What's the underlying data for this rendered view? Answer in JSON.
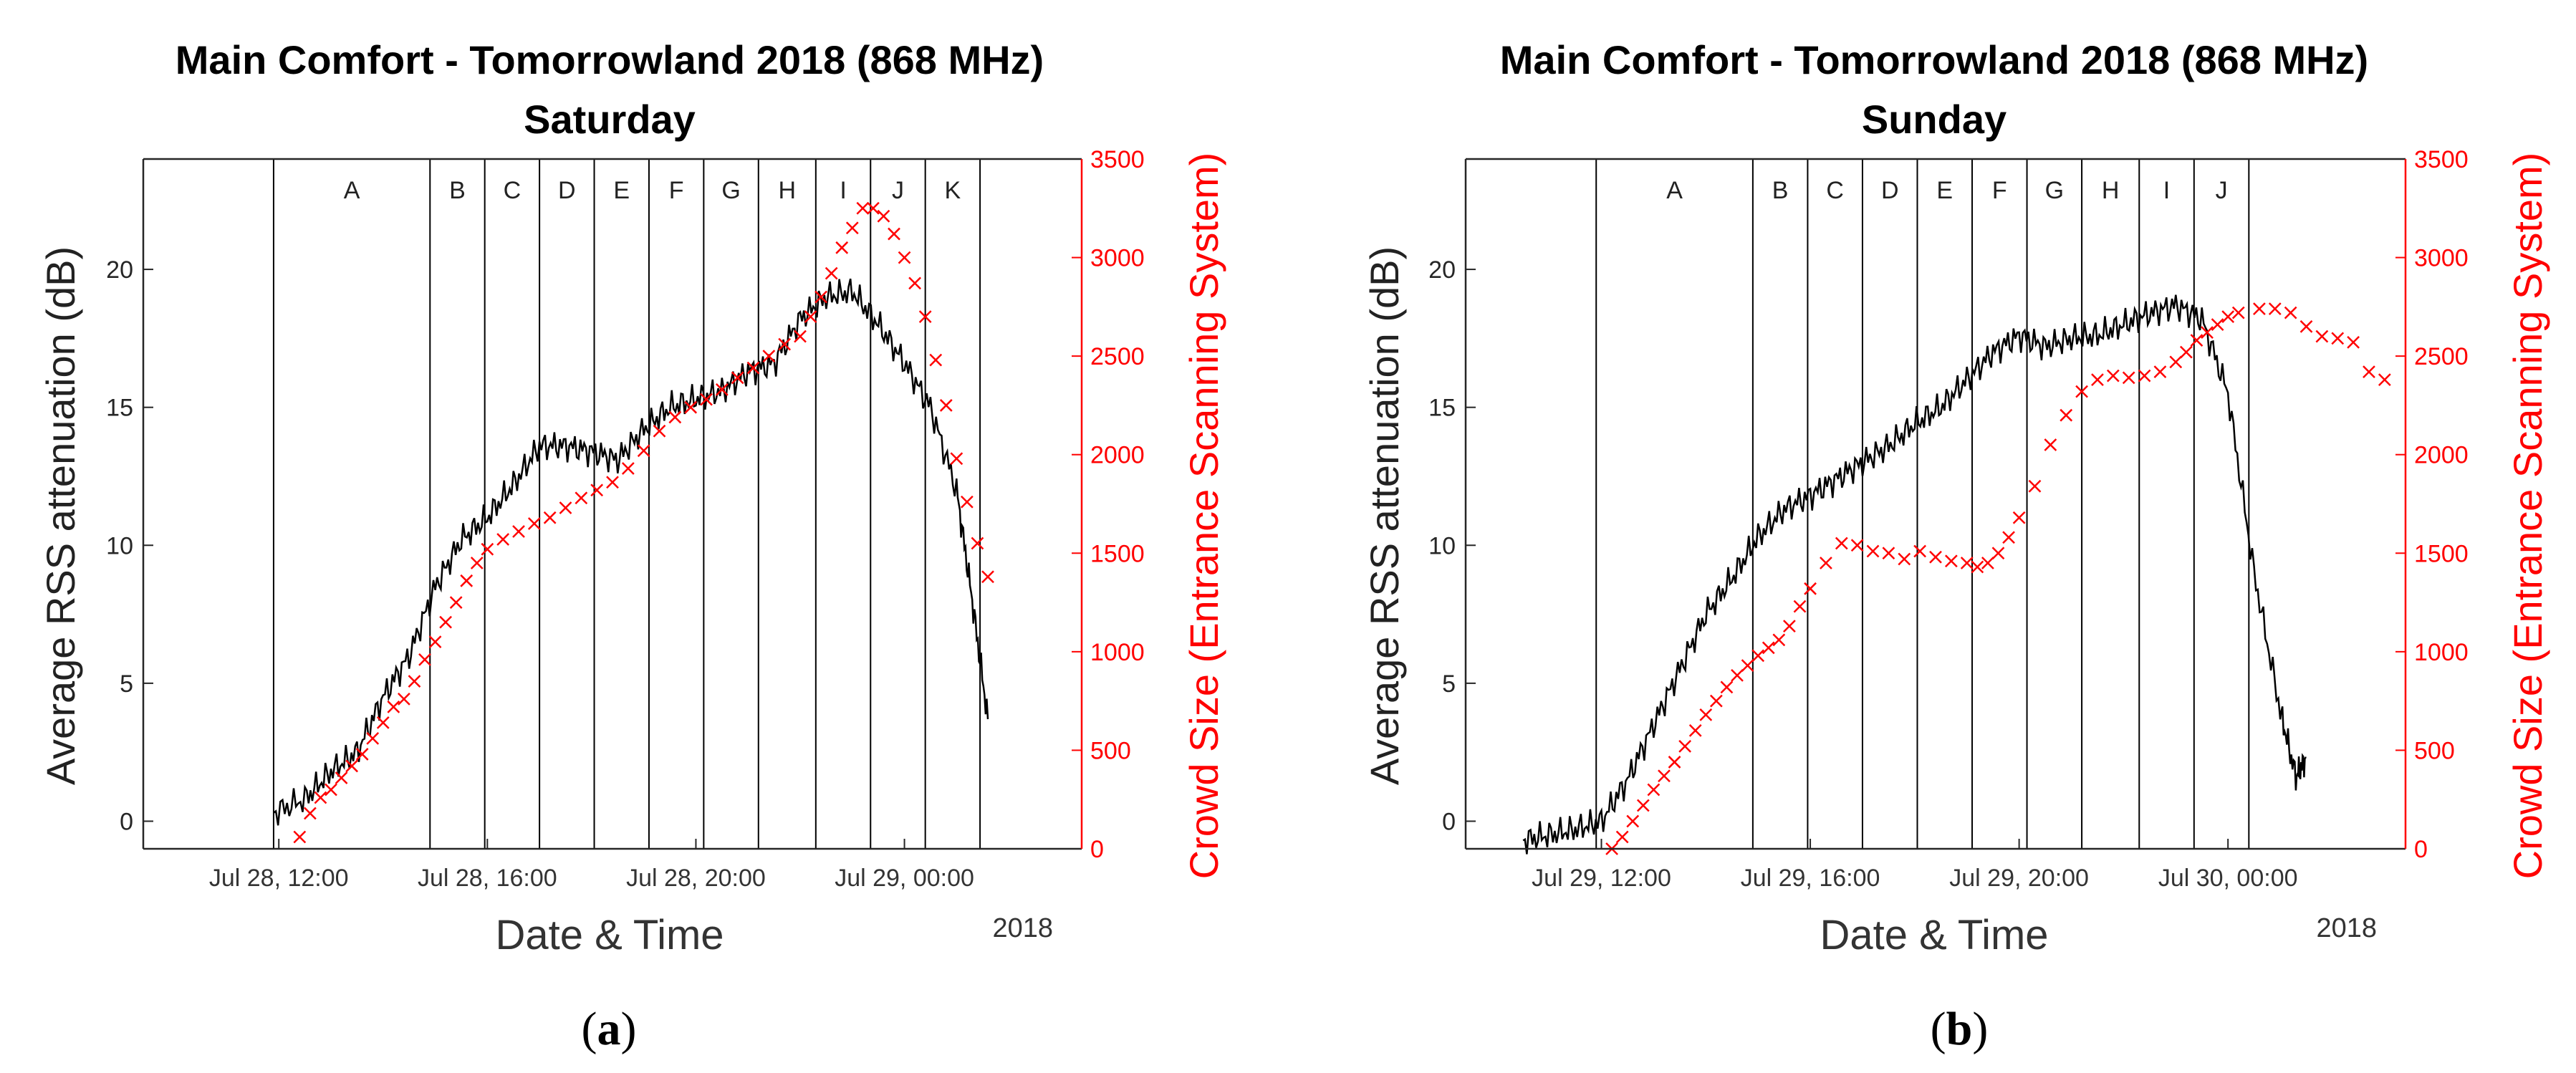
{
  "chart_data": [
    {
      "type": "line",
      "panel_label": "a",
      "title": "Main Comfort - Tomorrowland 2018 (868 MHz)",
      "subtitle": "Saturday",
      "xlabel": "Date & Time",
      "ylabel_left": "Average RSS attenuation (dB)",
      "ylabel_right": "Crowd Size (Entrance Scanning System)",
      "year_label": "2018",
      "x_unit": "hours since Jul 28, 00:00",
      "xlim": [
        9.4,
        27.4
      ],
      "ylim_left": [
        -1,
        24
      ],
      "ylim_right": [
        0,
        3500
      ],
      "yticks_left": [
        0,
        5,
        10,
        15,
        20
      ],
      "yticks_right": [
        0,
        500,
        1000,
        1500,
        2000,
        2500,
        3000,
        3500
      ],
      "xticks": [
        {
          "x": 12,
          "label": "Jul 28, 12:00"
        },
        {
          "x": 16,
          "label": "Jul 28, 16:00"
        },
        {
          "x": 20,
          "label": "Jul 28, 20:00"
        },
        {
          "x": 24,
          "label": "Jul 29, 00:00"
        }
      ],
      "period_lines": [
        11.9,
        14.9,
        15.95,
        17.0,
        18.05,
        19.1,
        20.15,
        21.2,
        22.3,
        23.35,
        24.4,
        25.45
      ],
      "periods": [
        "A",
        "B",
        "C",
        "D",
        "E",
        "F",
        "G",
        "H",
        "I",
        "J",
        "K"
      ],
      "series": [
        {
          "name": "Average RSS attenuation",
          "axis": "left",
          "color": "#000000",
          "x": [
            11.9,
            12.5,
            13.0,
            13.5,
            14.0,
            14.5,
            15.0,
            15.5,
            16.0,
            16.5,
            17.0,
            17.5,
            18.0,
            18.5,
            19.0,
            19.5,
            20.0,
            20.5,
            21.0,
            21.5,
            22.0,
            22.5,
            23.0,
            23.5,
            24.0,
            24.5,
            25.0,
            25.3,
            25.6
          ],
          "values": [
            0.3,
            0.8,
            1.8,
            2.5,
            4.5,
            6.0,
            8.5,
            10.2,
            11.0,
            12.2,
            13.6,
            13.6,
            13.4,
            13.1,
            14.2,
            15.0,
            15.3,
            15.6,
            16.3,
            16.6,
            18.2,
            19.0,
            19.2,
            18.0,
            16.6,
            15.0,
            12.0,
            8.0,
            3.7
          ]
        },
        {
          "name": "Crowd Size (Entrance Scanning System)",
          "axis": "right",
          "color": "#ff0000",
          "marker": "x",
          "x": [
            12.4,
            12.6,
            12.8,
            13.0,
            13.2,
            13.4,
            13.6,
            13.8,
            14.0,
            14.2,
            14.4,
            14.6,
            14.8,
            15.0,
            15.2,
            15.4,
            15.6,
            15.8,
            16.0,
            16.3,
            16.6,
            16.9,
            17.2,
            17.5,
            17.8,
            18.1,
            18.4,
            18.7,
            19.0,
            19.3,
            19.6,
            19.9,
            20.2,
            20.5,
            20.8,
            21.1,
            21.4,
            21.7,
            22.0,
            22.2,
            22.4,
            22.6,
            22.8,
            23.0,
            23.2,
            23.4,
            23.6,
            23.8,
            24.0,
            24.2,
            24.4,
            24.6,
            24.8,
            25.0,
            25.2,
            25.4,
            25.6
          ],
          "values": [
            60,
            180,
            260,
            300,
            360,
            420,
            480,
            560,
            640,
            720,
            760,
            850,
            960,
            1050,
            1150,
            1250,
            1360,
            1450,
            1520,
            1570,
            1610,
            1650,
            1680,
            1730,
            1780,
            1820,
            1860,
            1930,
            2020,
            2120,
            2190,
            2240,
            2280,
            2330,
            2390,
            2440,
            2500,
            2560,
            2600,
            2700,
            2800,
            2920,
            3050,
            3150,
            3250,
            3250,
            3210,
            3120,
            3000,
            2870,
            2700,
            2480,
            2250,
            1980,
            1760,
            1550,
            1380
          ]
        }
      ]
    },
    {
      "type": "line",
      "panel_label": "b",
      "title": "Main Comfort - Tomorrowland 2018 (868 MHz)",
      "subtitle": "Sunday",
      "xlabel": "Date & Time",
      "ylabel_left": "Average RSS attenuation (dB)",
      "ylabel_right": "Crowd Size (Entrance Scanning System)",
      "year_label": "2018",
      "x_unit": "hours since Jul 29, 00:00",
      "xlim": [
        9.4,
        27.4
      ],
      "ylim_left": [
        -1,
        24
      ],
      "ylim_right": [
        0,
        3500
      ],
      "yticks_left": [
        0,
        5,
        10,
        15,
        20
      ],
      "yticks_right": [
        0,
        500,
        1000,
        1500,
        2000,
        2500,
        3000,
        3500
      ],
      "xticks": [
        {
          "x": 12,
          "label": "Jul 29, 12:00"
        },
        {
          "x": 16,
          "label": "Jul 29, 16:00"
        },
        {
          "x": 20,
          "label": "Jul 29, 20:00"
        },
        {
          "x": 24,
          "label": "Jul 30, 00:00"
        }
      ],
      "period_lines": [
        11.9,
        14.9,
        15.95,
        17.0,
        18.05,
        19.1,
        20.15,
        21.2,
        22.3,
        23.35,
        24.4
      ],
      "periods": [
        "A",
        "B",
        "C",
        "D",
        "E",
        "F",
        "G",
        "H",
        "I",
        "J"
      ],
      "series": [
        {
          "name": "Average RSS attenuation",
          "axis": "left",
          "color": "#000000",
          "x": [
            10.5,
            11.0,
            11.5,
            12.0,
            12.5,
            13.0,
            13.5,
            14.0,
            14.5,
            15.0,
            15.5,
            16.0,
            16.5,
            17.0,
            17.5,
            18.0,
            18.5,
            19.0,
            19.5,
            20.0,
            20.5,
            21.0,
            21.5,
            22.0,
            22.5,
            23.0,
            23.5,
            24.0,
            24.5,
            25.0,
            25.3,
            25.5
          ],
          "values": [
            -0.7,
            -0.5,
            -0.3,
            0.0,
            1.5,
            3.5,
            5.5,
            7.5,
            8.8,
            10.3,
            11.3,
            11.8,
            12.4,
            13.0,
            13.6,
            14.4,
            15.0,
            16.0,
            17.0,
            17.6,
            17.2,
            17.5,
            17.6,
            18.0,
            18.4,
            18.7,
            18.2,
            15.5,
            9.0,
            4.0,
            1.6,
            2.3
          ]
        },
        {
          "name": "Crowd Size (Entrance Scanning System)",
          "axis": "right",
          "color": "#ff0000",
          "marker": "x",
          "x": [
            12.2,
            12.4,
            12.6,
            12.8,
            13.0,
            13.2,
            13.4,
            13.6,
            13.8,
            14.0,
            14.2,
            14.4,
            14.6,
            14.8,
            15.0,
            15.2,
            15.4,
            15.6,
            15.8,
            16.0,
            16.3,
            16.6,
            16.9,
            17.2,
            17.5,
            17.8,
            18.1,
            18.4,
            18.7,
            19.0,
            19.2,
            19.4,
            19.6,
            19.8,
            20.0,
            20.3,
            20.6,
            20.9,
            21.2,
            21.5,
            21.8,
            22.1,
            22.4,
            22.7,
            23.0,
            23.2,
            23.4,
            23.6,
            23.8,
            24.0,
            24.2,
            24.6,
            24.9,
            25.2,
            25.5,
            25.8,
            26.1,
            26.4,
            26.7,
            27.0
          ],
          "values": [
            0,
            60,
            140,
            220,
            300,
            370,
            440,
            520,
            600,
            680,
            750,
            820,
            880,
            930,
            980,
            1020,
            1060,
            1130,
            1230,
            1320,
            1450,
            1550,
            1540,
            1510,
            1500,
            1470,
            1510,
            1480,
            1460,
            1450,
            1430,
            1450,
            1500,
            1580,
            1680,
            1840,
            2050,
            2200,
            2320,
            2380,
            2400,
            2390,
            2400,
            2420,
            2470,
            2520,
            2580,
            2620,
            2660,
            2700,
            2720,
            2740,
            2740,
            2720,
            2650,
            2600,
            2590,
            2570,
            2420,
            2380
          ]
        }
      ]
    }
  ]
}
